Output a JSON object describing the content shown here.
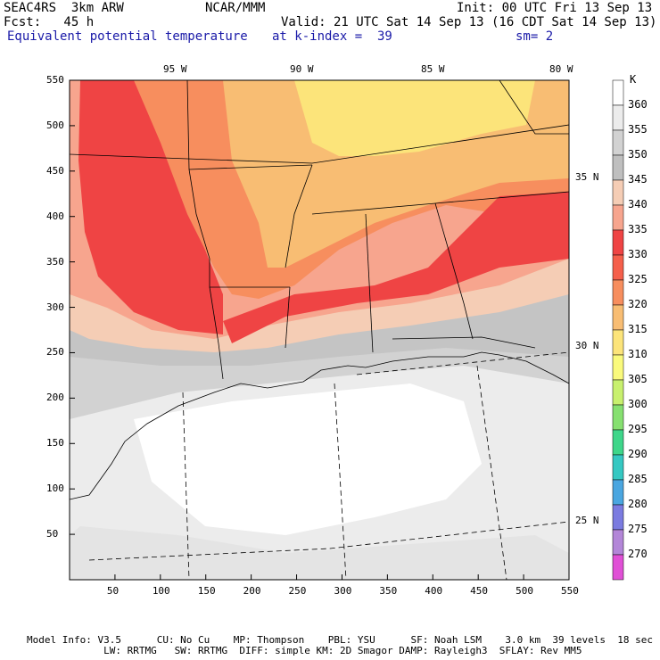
{
  "header": {
    "left_line1": "SEAC4RS  3km ARW",
    "center_line1": "NCAR/MMM",
    "right_line1": "Init: 00 UTC Fri 13 Sep 13",
    "left_line2": "Fcst:   45 h",
    "right_line2": "Valid: 21 UTC Sat 14 Sep 13 (16 CDT Sat 14 Sep 13)",
    "field_name": "Equivalent potential temperature",
    "level": "at k-index =  39",
    "smoothing": "sm= 2"
  },
  "axes": {
    "x_ticks": [
      "50",
      "100",
      "150",
      "200",
      "250",
      "300",
      "350",
      "400",
      "450",
      "500",
      "550"
    ],
    "y_ticks": [
      "50",
      "100",
      "150",
      "200",
      "250",
      "300",
      "350",
      "400",
      "450",
      "500",
      "550"
    ],
    "lon_labels": [
      "95 W",
      "90 W",
      "85 W",
      "80 W"
    ],
    "lat_labels": [
      "35 N",
      "30 N",
      "25 N"
    ]
  },
  "colorbar": {
    "unit": "K",
    "levels": [
      "360",
      "355",
      "350",
      "345",
      "340",
      "335",
      "330",
      "325",
      "320",
      "315",
      "310",
      "305",
      "300",
      "295",
      "290",
      "285",
      "280",
      "275",
      "270"
    ],
    "colors": [
      "#ffffff",
      "#ececec",
      "#d2d2d2",
      "#bfbfbf",
      "#f5cdb5",
      "#f7a58e",
      "#ef4444",
      "#f55f4b",
      "#f78e5e",
      "#f8bd73",
      "#fce47a",
      "#fafa7c",
      "#c8f06e",
      "#86e070",
      "#3ed68a",
      "#35c8c2",
      "#4aa6e0",
      "#7b7be0",
      "#b386d8",
      "#e050d6"
    ]
  },
  "footer": {
    "line1": "Model Info: V3.5      CU: No Cu    MP: Thompson    PBL: YSU      SF: Noah LSM    3.0 km  39 levels  18 sec",
    "line2": "             LW: RRTMG   SW: RRTMG  DIFF: simple KM: 2D Smagor DAMP: Rayleigh3  SFLAY: Rev MM5"
  }
}
